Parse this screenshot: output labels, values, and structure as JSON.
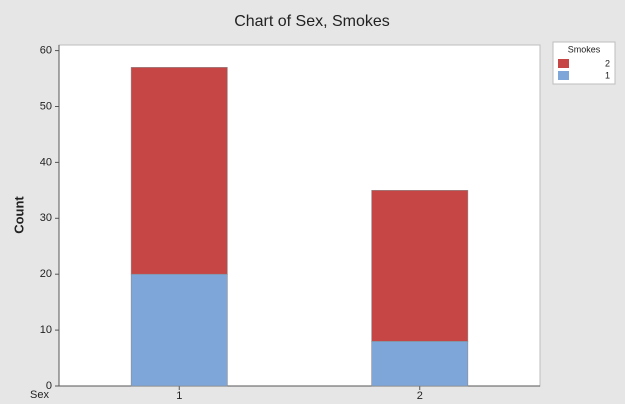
{
  "chart_data": {
    "type": "stacked_bar",
    "title": "Chart of Sex, Smokes",
    "x_label": "Sex",
    "y_label": "Count",
    "categories": [
      "1",
      "2"
    ],
    "series": [
      {
        "name": "1",
        "color": "#7ea6d9",
        "values": [
          20,
          8
        ]
      },
      {
        "name": "2",
        "color": "#c64545",
        "values": [
          37,
          27
        ]
      }
    ],
    "legend_title": "Smokes",
    "legend_position": "right",
    "ylim": [
      0,
      61
    ],
    "yticks": [
      0,
      10,
      20,
      30,
      40,
      50,
      60
    ]
  }
}
